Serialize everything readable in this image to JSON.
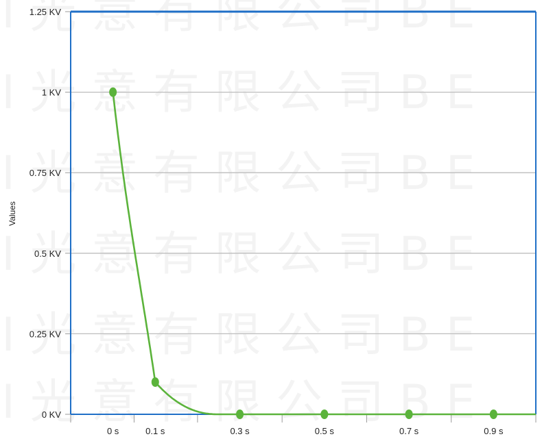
{
  "chart_data": {
    "type": "line",
    "title": "",
    "xlabel": "",
    "ylabel": "Values",
    "x_unit": "s",
    "y_unit": "KV",
    "xlim": [
      -0.1,
      1.0
    ],
    "ylim": [
      0,
      1.25
    ],
    "x_ticks": [
      0,
      0.1,
      0.3,
      0.5,
      0.7,
      0.9
    ],
    "x_tick_labels": [
      "0 s",
      "0.1 s",
      "0.3 s",
      "0.5 s",
      "0.7 s",
      "0.9 s"
    ],
    "y_ticks": [
      0,
      0.25,
      0.5,
      0.75,
      1,
      1.25
    ],
    "y_tick_labels": [
      "0 KV",
      "0.25 KV",
      "0.5 KV",
      "0.75 KV",
      "1 KV",
      "1.25 KV"
    ],
    "grid": true,
    "legend": false,
    "colors": {
      "series": "#5bb33b",
      "frame": "#1f6fc7",
      "grid": "#bdbdbd"
    },
    "series": [
      {
        "x": [
          0,
          0.1,
          0.3,
          0.5,
          0.7,
          0.9
        ],
        "y": [
          1.0,
          0.1,
          0.0,
          0.0,
          0.0,
          0.0
        ]
      }
    ],
    "watermark_text": "I 光 意 有 限 公 司 B E"
  }
}
